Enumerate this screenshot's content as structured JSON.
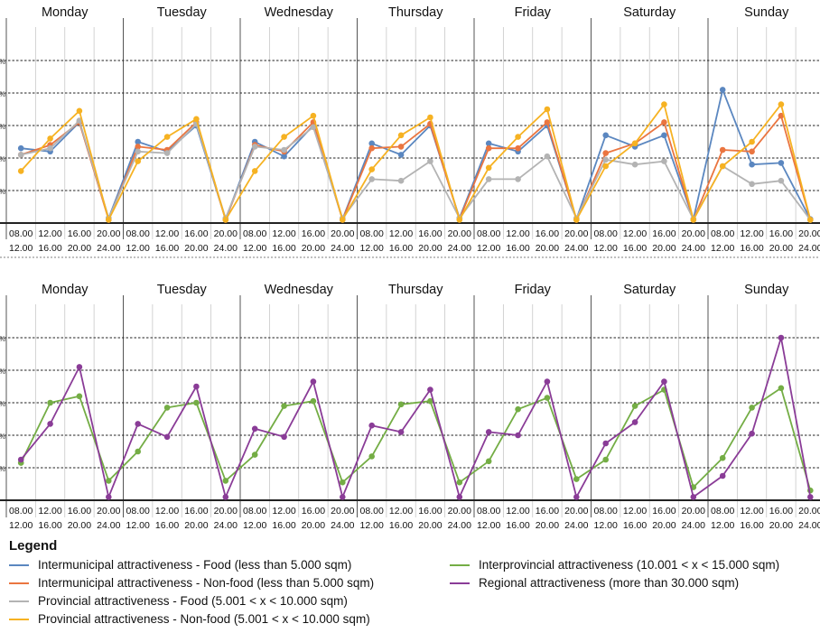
{
  "colors": {
    "intermunicipal_food": "#5b87c0",
    "intermunicipal_nonfood": "#ea7540",
    "provincial_food": "#b3b3b3",
    "provincial_nonfood": "#f6b222",
    "interprovincial": "#74ad45",
    "regional": "#8a3c97",
    "grid": "#222222",
    "divider": "#c8c8c8"
  },
  "legend": {
    "title": "Legend",
    "items": [
      {
        "key": "intermunicipal_food",
        "label": "Intermunicipal attractiveness - Food (less than 5.000 sqm)"
      },
      {
        "key": "intermunicipal_nonfood",
        "label": "Intermunicipal attractiveness - Non-food (less than 5.000 sqm)"
      },
      {
        "key": "provincial_food",
        "label": "Provincial attractiveness - Food (5.001 < x < 10.000 sqm)"
      },
      {
        "key": "provincial_nonfood",
        "label": "Provincial attractiveness - Non-food (5.001 < x < 10.000 sqm)"
      },
      {
        "key": "interprovincial",
        "label": "Interprovincial attractiveness (10.001 < x < 15.000 sqm)"
      },
      {
        "key": "regional",
        "label": "Regional attractiveness (more than 30.000 sqm)"
      }
    ]
  },
  "chart_data": [
    {
      "type": "line",
      "days": [
        "Monday",
        "Tuesday",
        "Wednesday",
        "Thursday",
        "Friday",
        "Saturday",
        "Sunday"
      ],
      "slots": [
        [
          "08.00",
          "12.00"
        ],
        [
          "12.00",
          "16.00"
        ],
        [
          "16.00",
          "20.00"
        ],
        [
          "20.00",
          "24.00"
        ]
      ],
      "tick_labels": [
        "%",
        "%",
        "%",
        "%",
        "%"
      ],
      "ylim": [
        0,
        5
      ],
      "grid": true,
      "series": [
        {
          "key": "intermunicipal_food",
          "values": [
            2.3,
            2.2,
            3.1,
            0.15,
            2.5,
            2.2,
            3.0,
            0.12,
            2.5,
            2.05,
            3.0,
            0.12,
            2.45,
            2.1,
            3.0,
            0.15,
            2.45,
            2.2,
            3.0,
            0.12,
            2.7,
            2.35,
            2.7,
            0.12,
            4.1,
            1.8,
            1.85,
            0.12
          ]
        },
        {
          "key": "intermunicipal_nonfood",
          "values": [
            2.1,
            2.4,
            3.1,
            0.1,
            2.35,
            2.25,
            3.1,
            0.1,
            2.4,
            2.2,
            3.1,
            0.1,
            2.3,
            2.35,
            3.05,
            0.12,
            2.3,
            2.3,
            3.1,
            0.1,
            2.15,
            2.45,
            3.1,
            0.1,
            2.25,
            2.2,
            3.3,
            0.1
          ]
        },
        {
          "key": "provincial_food",
          "values": [
            2.1,
            2.3,
            3.15,
            0.15,
            2.2,
            2.15,
            3.05,
            0.15,
            2.35,
            2.25,
            2.95,
            0.15,
            1.35,
            1.3,
            1.9,
            0.15,
            1.35,
            1.35,
            2.05,
            0.15,
            1.95,
            1.8,
            1.9,
            0.12,
            1.75,
            1.2,
            1.3,
            0.1
          ]
        },
        {
          "key": "provincial_nonfood",
          "values": [
            1.6,
            2.6,
            3.45,
            0.1,
            1.9,
            2.65,
            3.2,
            0.1,
            1.6,
            2.65,
            3.3,
            0.1,
            1.65,
            2.7,
            3.25,
            0.1,
            1.7,
            2.65,
            3.5,
            0.1,
            1.75,
            2.45,
            3.65,
            0.1,
            1.75,
            2.5,
            3.65,
            0.1
          ]
        }
      ]
    },
    {
      "type": "line",
      "days": [
        "Monday",
        "Tuesday",
        "Wednesday",
        "Thursday",
        "Friday",
        "Saturday",
        "Sunday"
      ],
      "slots": [
        [
          "08.00",
          "12.00"
        ],
        [
          "12.00",
          "16.00"
        ],
        [
          "16.00",
          "20.00"
        ],
        [
          "20.00",
          "24.00"
        ]
      ],
      "tick_labels": [
        "%",
        "%",
        "%",
        "%",
        "%"
      ],
      "ylim": [
        0,
        5
      ],
      "grid": true,
      "series": [
        {
          "key": "interprovincial",
          "values": [
            1.15,
            3.0,
            3.2,
            0.6,
            1.5,
            2.85,
            3.0,
            0.6,
            1.4,
            2.9,
            3.05,
            0.55,
            1.35,
            2.95,
            3.05,
            0.55,
            1.2,
            2.8,
            3.15,
            0.65,
            1.25,
            2.9,
            3.4,
            0.4,
            1.3,
            2.85,
            3.45,
            0.3
          ]
        },
        {
          "key": "regional",
          "values": [
            1.25,
            2.35,
            4.1,
            0.1,
            2.35,
            1.95,
            3.5,
            0.1,
            2.2,
            1.95,
            3.65,
            0.1,
            2.3,
            2.1,
            3.4,
            0.1,
            2.1,
            2.0,
            3.65,
            0.1,
            1.75,
            2.4,
            3.65,
            0.1,
            0.75,
            2.05,
            5.0,
            0.1
          ]
        }
      ]
    }
  ]
}
